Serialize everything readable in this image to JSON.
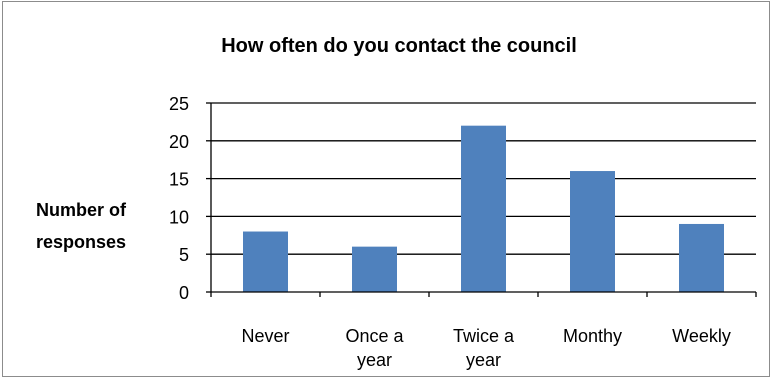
{
  "chart_data": {
    "type": "bar",
    "title": "How often do you contact the council",
    "xlabel": "",
    "ylabel": [
      "Number of",
      "responses"
    ],
    "categories": [
      [
        "Never"
      ],
      [
        "Once a",
        "year"
      ],
      [
        "Twice a",
        "year"
      ],
      [
        "Monthy"
      ],
      [
        "Weekly"
      ]
    ],
    "values": [
      8,
      6,
      22,
      16,
      9
    ],
    "ylim": [
      0,
      25
    ],
    "yticks": [
      0,
      5,
      10,
      15,
      20,
      25
    ],
    "grid": true,
    "legend": "none",
    "bar_color": "#4f81bd",
    "grid_color": "#000000"
  }
}
